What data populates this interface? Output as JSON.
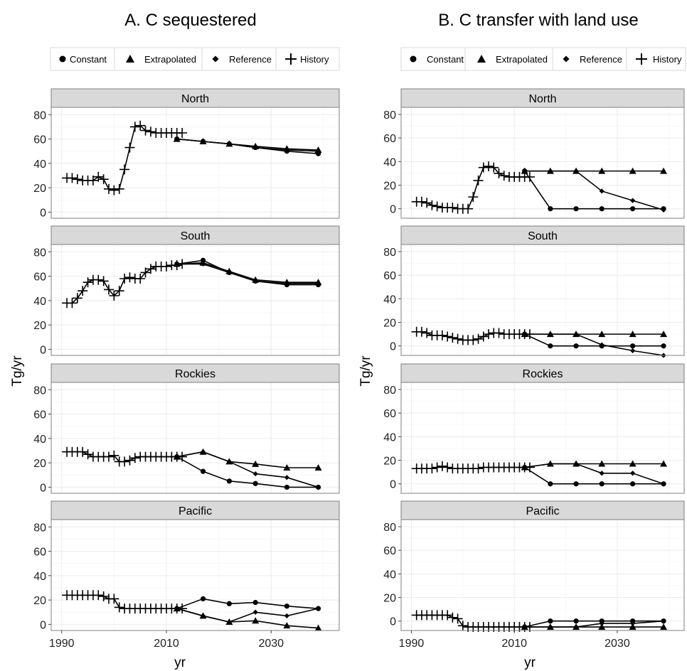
{
  "colors": {
    "strip": "#d9d9d9",
    "grid": "#ebebeb",
    "border": "#7f7f7f",
    "line": "#000000"
  },
  "chart_data": [
    {
      "type": "line",
      "title": "A. C sequestered",
      "xlabel": "yr",
      "ylabel": "Tg/yr",
      "xlim": [
        1988,
        2043
      ],
      "ylim": [
        -5,
        86
      ],
      "xticks": [
        1990,
        2010,
        2030
      ],
      "yticks": [
        0,
        20,
        40,
        60,
        80
      ],
      "grid": true,
      "legend": {
        "position": "top",
        "entries": [
          "Constant",
          "Extrapolated",
          "Reference",
          "History"
        ]
      },
      "panels": [
        {
          "label": "North",
          "history": {
            "x": [
              1991,
              1992,
              1993,
              1994,
              1995,
              1996,
              1997,
              1998,
              1999,
              2000,
              2001,
              2002,
              2003,
              2004,
              2005,
              2006,
              2007,
              2008,
              2009,
              2010,
              2011,
              2012,
              2013
            ],
            "y": [
              28,
              28,
              27,
              26,
              26,
              26,
              29,
              27,
              19,
              18,
              19,
              35,
              53,
              70,
              71,
              67,
              66,
              65,
              65,
              65,
              65,
              65,
              65
            ]
          },
          "constant": {
            "x": [
              2012,
              2017,
              2022,
              2027,
              2033,
              2039
            ],
            "y": [
              60,
              58,
              56,
              53,
              50,
              48
            ]
          },
          "extrapolated": {
            "x": [
              2012,
              2017,
              2022,
              2027,
              2033,
              2039
            ],
            "y": [
              60,
              58,
              56,
              54,
              52,
              51
            ]
          },
          "reference": {
            "x": [
              2012,
              2017,
              2022,
              2027,
              2033,
              2039
            ],
            "y": [
              60,
              58,
              56,
              53,
              51,
              50
            ]
          }
        },
        {
          "label": "South",
          "history": {
            "x": [
              1991,
              1992,
              1993,
              1994,
              1995,
              1996,
              1997,
              1998,
              1999,
              2000,
              2001,
              2002,
              2003,
              2004,
              2005,
              2006,
              2007,
              2008,
              2009,
              2010,
              2011,
              2012,
              2013
            ],
            "y": [
              38,
              38,
              42,
              48,
              55,
              57,
              57,
              56,
              49,
              44,
              48,
              58,
              59,
              58,
              58,
              63,
              66,
              68,
              68,
              68,
              69,
              69,
              70
            ]
          },
          "constant": {
            "x": [
              2012,
              2017,
              2022,
              2027,
              2033,
              2039
            ],
            "y": [
              70,
              73,
              63,
              56,
              53,
              53
            ]
          },
          "extrapolated": {
            "x": [
              2012,
              2017,
              2022,
              2027,
              2033,
              2039
            ],
            "y": [
              70,
              71,
              64,
              57,
              55,
              55
            ]
          },
          "reference": {
            "x": [
              2012,
              2017,
              2022,
              2027,
              2033,
              2039
            ],
            "y": [
              70,
              70,
              63,
              56,
              54,
              54
            ]
          }
        },
        {
          "label": "Rockies",
          "history": {
            "x": [
              1991,
              1992,
              1993,
              1994,
              1995,
              1996,
              1997,
              1998,
              1999,
              2000,
              2001,
              2002,
              2003,
              2004,
              2005,
              2006,
              2007,
              2008,
              2009,
              2010,
              2011,
              2012,
              2013
            ],
            "y": [
              29,
              29,
              29,
              29,
              27,
              25,
              25,
              25,
              25,
              26,
              21,
              21,
              22,
              24,
              25,
              25,
              25,
              25,
              25,
              25,
              25,
              25,
              25
            ]
          },
          "constant": {
            "x": [
              2012,
              2017,
              2022,
              2027,
              2033,
              2039
            ],
            "y": [
              25,
              13,
              5,
              3,
              0,
              0
            ]
          },
          "extrapolated": {
            "x": [
              2012,
              2017,
              2022,
              2027,
              2033,
              2039
            ],
            "y": [
              25,
              29,
              21,
              19,
              16,
              16
            ]
          },
          "reference": {
            "x": [
              2012,
              2017,
              2022,
              2027,
              2033,
              2039
            ],
            "y": [
              25,
              29,
              21,
              11,
              8,
              0
            ]
          }
        },
        {
          "label": "Pacific",
          "history": {
            "x": [
              1991,
              1992,
              1993,
              1994,
              1995,
              1996,
              1997,
              1998,
              1999,
              2000,
              2001,
              2002,
              2003,
              2004,
              2005,
              2006,
              2007,
              2008,
              2009,
              2010,
              2011,
              2012,
              2013
            ],
            "y": [
              24,
              24,
              24,
              24,
              24,
              24,
              24,
              23,
              21,
              21,
              14,
              13,
              13,
              13,
              13,
              13,
              13,
              13,
              13,
              13,
              13,
              13,
              13
            ]
          },
          "constant": {
            "x": [
              2012,
              2017,
              2022,
              2027,
              2033,
              2039
            ],
            "y": [
              13,
              21,
              17,
              18,
              15,
              13
            ]
          },
          "extrapolated": {
            "x": [
              2012,
              2017,
              2022,
              2027,
              2033,
              2039
            ],
            "y": [
              13,
              7,
              2,
              3,
              -1,
              -3
            ]
          },
          "reference": {
            "x": [
              2012,
              2017,
              2022,
              2027,
              2033,
              2039
            ],
            "y": [
              13,
              7,
              2,
              10,
              7,
              13
            ]
          }
        }
      ]
    },
    {
      "type": "line",
      "title": "B. C transfer with land use",
      "xlabel": "yr",
      "ylabel": "Tg/yr",
      "xlim": [
        1988,
        2043
      ],
      "ylim": [
        -8,
        86
      ],
      "xticks": [
        1990,
        2010,
        2030
      ],
      "yticks": [
        0,
        20,
        40,
        60,
        80
      ],
      "grid": true,
      "legend": {
        "position": "top",
        "entries": [
          "Constant",
          "Extrapolated",
          "Reference",
          "History"
        ]
      },
      "panels": [
        {
          "label": "North",
          "history": {
            "x": [
              1991,
              1992,
              1993,
              1994,
              1995,
              1996,
              1997,
              1998,
              1999,
              2000,
              2001,
              2002,
              2003,
              2004,
              2005,
              2006,
              2007,
              2008,
              2009,
              2010,
              2011,
              2012,
              2013
            ],
            "y": [
              6,
              6,
              5,
              3,
              2,
              1,
              1,
              1,
              0,
              0,
              0,
              10,
              24,
              35,
              36,
              35,
              30,
              28,
              27,
              27,
              27,
              27,
              27
            ]
          },
          "constant": {
            "x": [
              2012,
              2017,
              2022,
              2027,
              2033,
              2039
            ],
            "y": [
              32,
              0,
              0,
              0,
              0,
              0
            ]
          },
          "extrapolated": {
            "x": [
              2012,
              2017,
              2022,
              2027,
              2033,
              2039
            ],
            "y": [
              32,
              32,
              32,
              32,
              32,
              32
            ]
          },
          "reference": {
            "x": [
              2012,
              2017,
              2022,
              2027,
              2033,
              2039
            ],
            "y": [
              32,
              32,
              32,
              15,
              7,
              -1
            ]
          }
        },
        {
          "label": "South",
          "history": {
            "x": [
              1991,
              1992,
              1993,
              1994,
              1995,
              1996,
              1997,
              1998,
              1999,
              2000,
              2001,
              2002,
              2003,
              2004,
              2005,
              2006,
              2007,
              2008,
              2009,
              2010,
              2011,
              2012,
              2013
            ],
            "y": [
              12,
              12,
              11,
              9,
              9,
              9,
              8,
              7,
              6,
              5,
              5,
              5,
              6,
              8,
              10,
              11,
              11,
              10,
              10,
              10,
              10,
              10,
              10
            ]
          },
          "constant": {
            "x": [
              2012,
              2017,
              2022,
              2027,
              2033,
              2039
            ],
            "y": [
              10,
              0,
              0,
              0,
              0,
              0
            ]
          },
          "extrapolated": {
            "x": [
              2012,
              2017,
              2022,
              2027,
              2033,
              2039
            ],
            "y": [
              10,
              10,
              10,
              10,
              10,
              10
            ]
          },
          "reference": {
            "x": [
              2012,
              2017,
              2022,
              2027,
              2033,
              2039
            ],
            "y": [
              10,
              10,
              10,
              1,
              -4,
              -8
            ]
          }
        },
        {
          "label": "Rockies",
          "history": {
            "x": [
              1991,
              1992,
              1993,
              1994,
              1995,
              1996,
              1997,
              1998,
              1999,
              2000,
              2001,
              2002,
              2003,
              2004,
              2005,
              2006,
              2007,
              2008,
              2009,
              2010,
              2011,
              2012,
              2013
            ],
            "y": [
              13,
              13,
              13,
              13,
              14,
              15,
              14,
              13,
              13,
              13,
              13,
              13,
              13,
              14,
              14,
              14,
              14,
              14,
              14,
              14,
              14,
              14,
              14
            ]
          },
          "constant": {
            "x": [
              2012,
              2017,
              2022,
              2027,
              2033,
              2039
            ],
            "y": [
              14,
              0,
              0,
              0,
              0,
              0
            ]
          },
          "extrapolated": {
            "x": [
              2012,
              2017,
              2022,
              2027,
              2033,
              2039
            ],
            "y": [
              14,
              17,
              17,
              17,
              17,
              17
            ]
          },
          "reference": {
            "x": [
              2012,
              2017,
              2022,
              2027,
              2033,
              2039
            ],
            "y": [
              14,
              17,
              17,
              9,
              9,
              0
            ]
          }
        },
        {
          "label": "Pacific",
          "history": {
            "x": [
              1991,
              1992,
              1993,
              1994,
              1995,
              1996,
              1997,
              1998,
              1999,
              2000,
              2001,
              2002,
              2003,
              2004,
              2005,
              2006,
              2007,
              2008,
              2009,
              2010,
              2011,
              2012,
              2013
            ],
            "y": [
              5,
              5,
              5,
              5,
              5,
              5,
              5,
              3,
              2,
              -4,
              -5,
              -5,
              -5,
              -5,
              -5,
              -5,
              -5,
              -5,
              -5,
              -5,
              -5,
              -5,
              -5
            ]
          },
          "constant": {
            "x": [
              2012,
              2017,
              2022,
              2027,
              2033,
              2039
            ],
            "y": [
              -5,
              0,
              0,
              0,
              0,
              0
            ]
          },
          "extrapolated": {
            "x": [
              2012,
              2017,
              2022,
              2027,
              2033,
              2039
            ],
            "y": [
              -5,
              -5,
              -5,
              -5,
              -5,
              -5
            ]
          },
          "reference": {
            "x": [
              2012,
              2017,
              2022,
              2027,
              2033,
              2039
            ],
            "y": [
              -5,
              -5,
              -5,
              -2,
              -2,
              0
            ]
          }
        }
      ]
    }
  ]
}
